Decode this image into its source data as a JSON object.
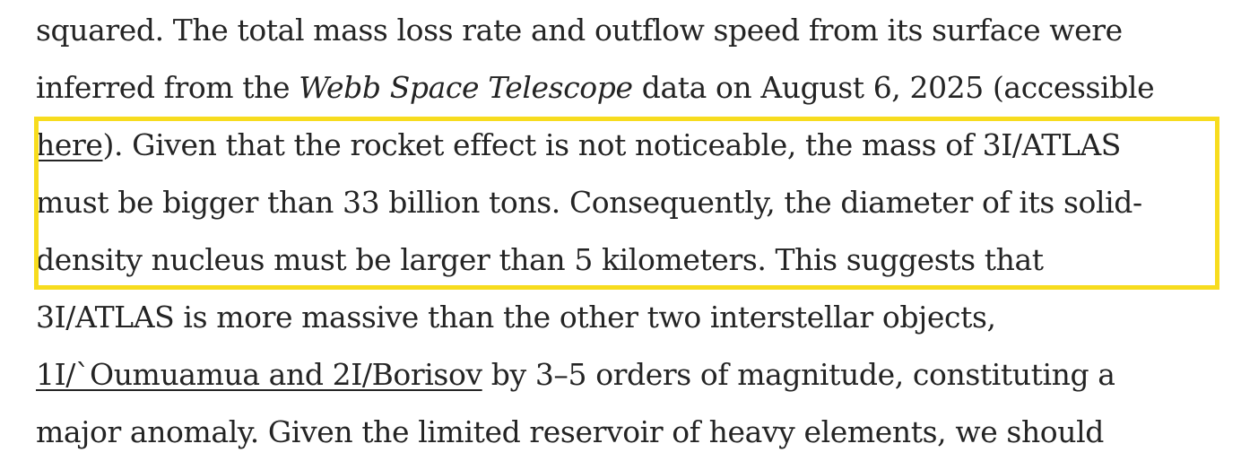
{
  "article": {
    "lines": [
      {
        "a": "squared. The total mass loss rate and outflow speed from its surface were"
      },
      {
        "a": "inferred from the ",
        "b": "Webb Space Telescope",
        "c": " data on August 6, 2025 (accessible"
      },
      {
        "link": "here",
        "a": "). Given that the rocket effect is not noticeable, the mass of 3I/ATLAS"
      },
      {
        "a": "must be bigger than 33 billion tons. Consequently, the diameter of its solid-"
      },
      {
        "a": "density nucleus must be larger than 5 kilometers. This suggests that"
      },
      {
        "a": "3I/ATLAS is more massive than the other two interstellar objects,"
      },
      {
        "link": "1I/`Oumuamua and 2I/Borisov",
        "a": " by 3–5 orders of magnitude, constituting a"
      },
      {
        "a": "major anomaly. Given the limited reservoir of heavy elements, we should"
      }
    ]
  },
  "colors": {
    "highlight_border": "#f7dc1e",
    "text": "#242424"
  }
}
